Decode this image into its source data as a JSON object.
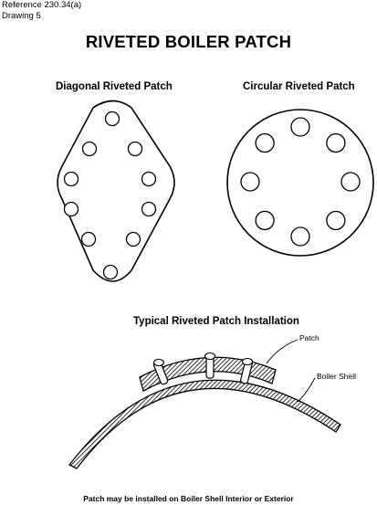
{
  "header": {
    "reference": "Reference 230.34(a)",
    "drawing": "Drawing 5"
  },
  "title": "RIVETED BOILER PATCH",
  "figures": {
    "diagonal": {
      "label": "Diagonal Riveted Patch",
      "rivet_count": 10
    },
    "circular": {
      "label": "Circular Riveted Patch",
      "rivet_count": 8
    },
    "installation": {
      "label": "Typical Riveted Patch Installation",
      "callout_patch": "Patch",
      "callout_shell": "Boiler Shell",
      "rivet_count": 3
    }
  },
  "note": "Patch may be installed on Boiler Shell Interior or Exterior",
  "colors": {
    "ink": "#000000",
    "paper": "#ffffff"
  }
}
